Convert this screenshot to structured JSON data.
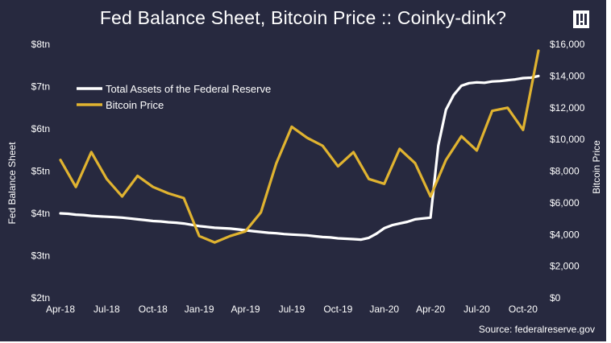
{
  "chart_data": {
    "type": "line",
    "title": "Fed Balance Sheet, Bitcoin Price :: Coinky-dink?",
    "source": "Source: federalreserve.gov",
    "x": [
      "2018-04",
      "2018-05",
      "2018-06",
      "2018-07",
      "2018-08",
      "2018-09",
      "2018-10",
      "2018-11",
      "2018-12",
      "2019-01",
      "2019-02",
      "2019-03",
      "2019-04",
      "2019-05",
      "2019-06",
      "2019-07",
      "2019-08",
      "2019-09",
      "2019-10",
      "2019-11",
      "2019-12",
      "2020-01",
      "2020-02",
      "2020-03",
      "2020-04",
      "2020-05",
      "2020-06",
      "2020-07",
      "2020-08",
      "2020-09",
      "2020-10",
      "2020-11"
    ],
    "x_tick_labels": [
      "Apr-18",
      "Jul-18",
      "Oct-18",
      "Jan-19",
      "Apr-19",
      "Jul-19",
      "Oct-19",
      "Jan-20",
      "Apr-20",
      "Jul-20",
      "Oct-20"
    ],
    "left_axis": {
      "label": "Fed Balance Sheet",
      "ticks": [
        "$2tn",
        "$3tn",
        "$4tn",
        "$5tn",
        "$6tn",
        "$7tn",
        "$8tn"
      ],
      "ylim": [
        2,
        8
      ]
    },
    "right_axis": {
      "label": "Bitcoin Price",
      "ticks": [
        "$0",
        "$2,000",
        "$4,000",
        "$6,000",
        "$8,000",
        "$10,000",
        "$12,000",
        "$14,000",
        "$16,000"
      ],
      "ylim": [
        0,
        16000
      ]
    },
    "legend": {
      "position": "top-left"
    },
    "series": [
      {
        "name": "Total Assets of the Federal Reserve",
        "axis": "left",
        "color": "#ffffff",
        "x": [
          0,
          0.5,
          1,
          1.5,
          2,
          2.5,
          3,
          3.5,
          4,
          4.5,
          5,
          5.5,
          6,
          6.5,
          7,
          7.5,
          8,
          8.5,
          9,
          9.5,
          10,
          10.5,
          11,
          11.5,
          12,
          12.5,
          13,
          13.5,
          14,
          14.5,
          15,
          15.5,
          16,
          16.5,
          17,
          17.5,
          18,
          18.5,
          19,
          19.5,
          20,
          20.5,
          21,
          21.5,
          22,
          22.5,
          23,
          23.5,
          24,
          24.5,
          25,
          25.5,
          26,
          26.5,
          27,
          27.5,
          28,
          28.5,
          29,
          29.5,
          30,
          30.5,
          31
        ],
        "values": [
          4.0,
          3.99,
          3.97,
          3.96,
          3.94,
          3.93,
          3.92,
          3.91,
          3.9,
          3.88,
          3.86,
          3.84,
          3.82,
          3.81,
          3.79,
          3.78,
          3.76,
          3.73,
          3.7,
          3.68,
          3.66,
          3.65,
          3.64,
          3.62,
          3.6,
          3.58,
          3.56,
          3.54,
          3.53,
          3.51,
          3.5,
          3.49,
          3.48,
          3.46,
          3.44,
          3.43,
          3.41,
          3.4,
          3.39,
          3.38,
          3.42,
          3.52,
          3.65,
          3.72,
          3.76,
          3.8,
          3.86,
          3.88,
          3.9,
          5.6,
          6.45,
          6.8,
          7.02,
          7.08,
          7.1,
          7.09,
          7.12,
          7.13,
          7.15,
          7.17,
          7.2,
          7.21,
          7.25
        ]
      },
      {
        "name": "Bitcoin Price",
        "axis": "right",
        "color": "#e0b330",
        "values": [
          8700,
          7000,
          9200,
          7500,
          6400,
          7700,
          7000,
          6600,
          6300,
          3900,
          3500,
          3900,
          4200,
          5400,
          8500,
          10800,
          10100,
          9600,
          8300,
          9200,
          7500,
          7200,
          9400,
          8500,
          6400,
          8700,
          10200,
          9300,
          11800,
          12000,
          10600,
          15600
        ]
      }
    ]
  }
}
